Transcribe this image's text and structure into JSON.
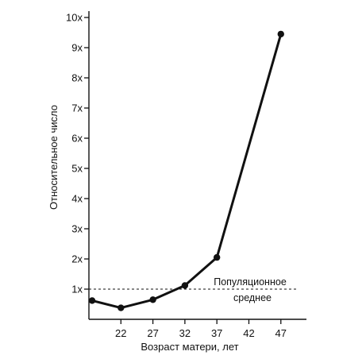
{
  "chart_data": {
    "type": "line",
    "xlabel": "Возраст матери, лет",
    "ylabel": "Относительное число",
    "x_ticks": [
      22,
      27,
      32,
      37,
      42,
      47
    ],
    "y_ticks": [
      "1x",
      "2x",
      "3x",
      "4x",
      "5x",
      "6x",
      "7x",
      "8x",
      "9x",
      "10x"
    ],
    "xlim": [
      17,
      51
    ],
    "ylim": [
      0,
      10
    ],
    "series": [
      {
        "x": [
          17.5,
          22,
          27,
          32,
          37,
          47
        ],
        "y": [
          0.62,
          0.38,
          0.65,
          1.12,
          2.05,
          9.45
        ]
      }
    ],
    "reference_line": {
      "y": 1,
      "label_line1": "Популяционное",
      "label_line2": "среднее"
    },
    "grid": false,
    "line_color": "#111111"
  }
}
